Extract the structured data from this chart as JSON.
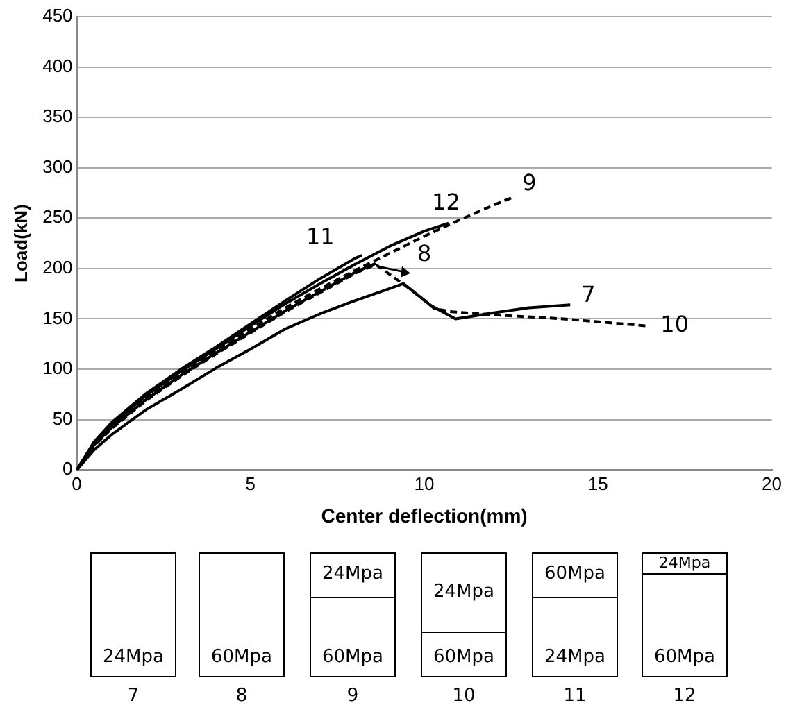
{
  "chart_data": {
    "type": "line",
    "xlabel": "Center deflection(mm)",
    "ylabel": "Load(kN)",
    "xlim": [
      0,
      20
    ],
    "xticks": [
      0,
      5,
      10,
      15,
      20
    ],
    "ylim": [
      0,
      450
    ],
    "yticks": [
      0,
      50,
      100,
      150,
      200,
      250,
      300,
      350,
      400,
      450
    ],
    "grid": "y",
    "legend": false,
    "marker": "none",
    "series": [
      {
        "name": "7",
        "color": "#000000",
        "line_style": "solid",
        "x": [
          0,
          0.5,
          1,
          2,
          3,
          4,
          5,
          6,
          7,
          8,
          9,
          9.4,
          10.2,
          10.9,
          12,
          13,
          14.2
        ],
        "values": [
          0,
          20,
          35,
          60,
          80,
          101,
          120,
          140,
          155,
          168,
          180,
          185,
          163,
          150,
          156,
          161,
          164
        ]
      },
      {
        "name": "8",
        "color": "#000000",
        "line_style": "solid",
        "x": [
          0,
          0.5,
          1,
          2,
          3,
          4,
          5,
          6,
          7,
          8,
          8.6
        ],
        "values": [
          0,
          25,
          42,
          70,
          94,
          116,
          137,
          158,
          177,
          196,
          205
        ]
      },
      {
        "name": "9",
        "color": "#000000",
        "line_style": "dashed",
        "x": [
          0,
          0.5,
          1,
          2,
          3,
          4,
          5,
          6,
          7,
          8,
          9,
          10,
          11,
          12,
          12.5
        ],
        "values": [
          0,
          26,
          44,
          72,
          96,
          118,
          140,
          161,
          180,
          198,
          215,
          232,
          248,
          263,
          270
        ]
      },
      {
        "name": "10",
        "color": "#000000",
        "line_style": "dashed",
        "x": [
          0,
          0.5,
          1,
          2,
          3,
          4,
          5,
          6,
          7,
          8,
          8.6,
          9.5,
          10.3,
          10.8,
          12,
          14,
          16.4
        ],
        "values": [
          0,
          24,
          41,
          69,
          93,
          115,
          136,
          157,
          176,
          195,
          204,
          182,
          160,
          157,
          154,
          150,
          143
        ]
      },
      {
        "name": "11",
        "color": "#000000",
        "line_style": "solid",
        "x": [
          0,
          0.5,
          1,
          2,
          3,
          4,
          5,
          6,
          7,
          8,
          8.2
        ],
        "values": [
          0,
          28,
          47,
          76,
          100,
          122,
          145,
          168,
          190,
          210,
          213
        ]
      },
      {
        "name": "12",
        "color": "#000000",
        "line_style": "solid",
        "x": [
          0,
          0.5,
          1,
          2,
          3,
          4,
          5,
          6,
          7,
          8,
          9,
          10,
          10.7
        ],
        "values": [
          0,
          27,
          45,
          74,
          98,
          120,
          143,
          165,
          185,
          204,
          222,
          237,
          245
        ]
      }
    ],
    "annotations": [
      "24Mpa",
      "60Mpa",
      "24Mpa",
      "60Mpa",
      "24Mpa",
      "60Mpa",
      "60Mpa",
      "24Mpa",
      "24Mpa",
      "60Mpa"
    ]
  }
}
